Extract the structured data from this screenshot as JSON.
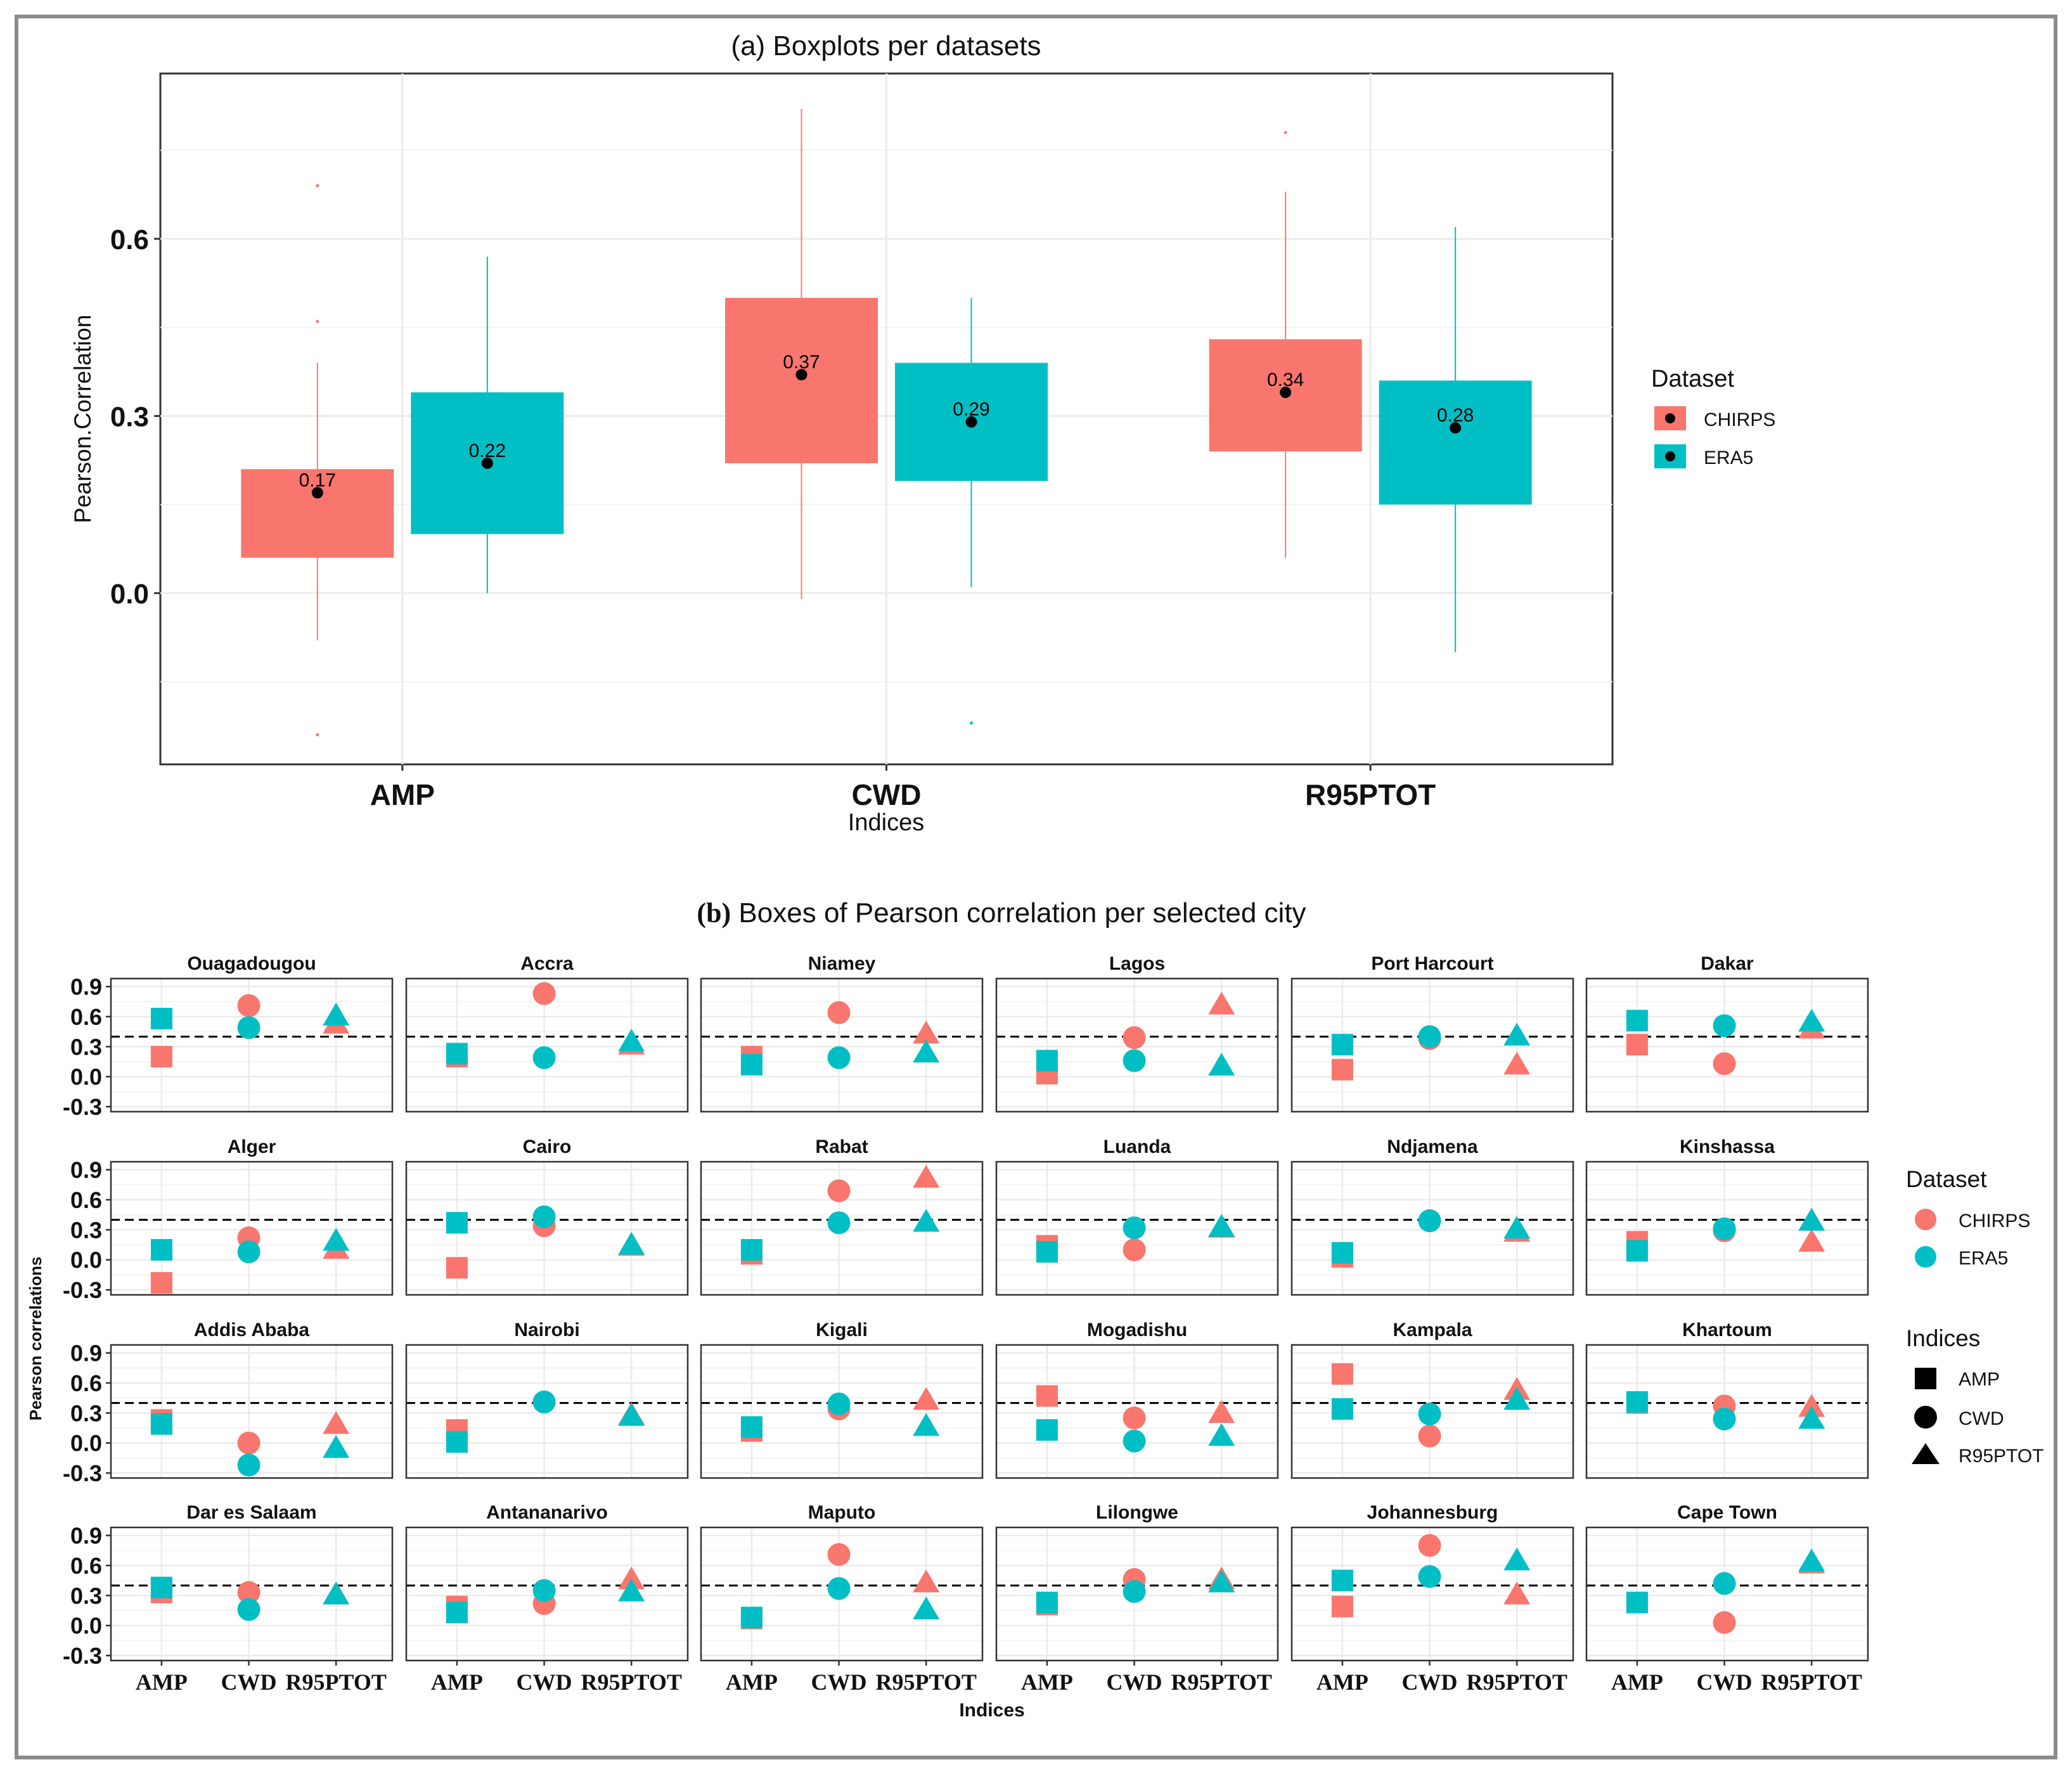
{
  "colors": {
    "chirps": "#F8766D",
    "era5": "#00BFC4",
    "panel_bg": "#FFFFFF",
    "grid": "#EBEBEB",
    "frame": "#333333"
  },
  "chart_data": [
    {
      "type": "boxplot",
      "title": "(a) Boxplots per datasets",
      "xlabel": "Indices",
      "ylabel": "Pearson.Correlation",
      "ylim": [
        -0.29,
        0.88
      ],
      "yticks": [
        "0.0",
        "0.3",
        "0.6"
      ],
      "yticks_values": [
        0.0,
        0.3,
        0.6
      ],
      "categories": [
        "AMP",
        "CWD",
        "R95PTOT"
      ],
      "legend": {
        "title": "Dataset",
        "entries": [
          "CHIRPS",
          "ERA5"
        ],
        "position": "right"
      },
      "series": [
        {
          "name": "CHIRPS",
          "boxes": [
            {
              "q1": 0.06,
              "q3": 0.21,
              "mean": 0.17,
              "label": "0.17",
              "whisker_low": -0.08,
              "whisker_high": 0.39,
              "outliers": [
                0.69,
                0.46,
                -0.24
              ]
            },
            {
              "q1": 0.22,
              "q3": 0.5,
              "mean": 0.37,
              "label": "0.37",
              "whisker_low": -0.01,
              "whisker_high": 0.82,
              "outliers": []
            },
            {
              "q1": 0.24,
              "q3": 0.43,
              "mean": 0.34,
              "label": "0.34",
              "whisker_low": 0.06,
              "whisker_high": 0.68,
              "outliers": [
                0.78
              ]
            }
          ]
        },
        {
          "name": "ERA5",
          "boxes": [
            {
              "q1": 0.1,
              "q3": 0.34,
              "mean": 0.22,
              "label": "0.22",
              "whisker_low": 0.0,
              "whisker_high": 0.57,
              "outliers": []
            },
            {
              "q1": 0.19,
              "q3": 0.39,
              "mean": 0.29,
              "label": "0.29",
              "whisker_low": 0.01,
              "whisker_high": 0.5,
              "outliers": [
                -0.22
              ]
            },
            {
              "q1": 0.15,
              "q3": 0.36,
              "mean": 0.28,
              "label": "0.28",
              "whisker_low": -0.1,
              "whisker_high": 0.62,
              "outliers": []
            }
          ]
        }
      ]
    },
    {
      "type": "scatter",
      "title_bold": "(b)",
      "title": " Boxes of Pearson correlation per selected city",
      "xlabel": "Indices",
      "ylabel": "Pearson correlations",
      "ylim": [
        -0.35,
        0.98
      ],
      "yticks": [
        "0.9",
        "0.6",
        "0.3",
        "0.0",
        "-0.3"
      ],
      "yticks_values": [
        0.9,
        0.6,
        0.3,
        0.0,
        -0.3
      ],
      "reference_line": 0.4,
      "categories": [
        "AMP",
        "CWD",
        "R95PTOT"
      ],
      "legend": {
        "dataset_title": "Dataset",
        "dataset_entries": [
          "CHIRPS",
          "ERA5"
        ],
        "indices_title": "Indices",
        "indices_entries": [
          "AMP",
          "CWD",
          "R95PTOT"
        ],
        "position": "right"
      },
      "cities": [
        {
          "name": "Ouagadougou",
          "CHIRPS": [
            0.2,
            0.71,
            0.52
          ],
          "ERA5": [
            0.58,
            0.49,
            0.6
          ]
        },
        {
          "name": "Accra",
          "CHIRPS": [
            0.2,
            0.83,
            0.31
          ],
          "ERA5": [
            0.23,
            0.19,
            0.34
          ]
        },
        {
          "name": "Niamey",
          "CHIRPS": [
            0.2,
            0.64,
            0.42
          ],
          "ERA5": [
            0.12,
            0.19,
            0.23
          ]
        },
        {
          "name": "Lagos",
          "CHIRPS": [
            0.03,
            0.39,
            0.71
          ],
          "ERA5": [
            0.16,
            0.16,
            0.1
          ]
        },
        {
          "name": "Port Harcourt",
          "CHIRPS": [
            0.07,
            0.38,
            0.11
          ],
          "ERA5": [
            0.32,
            0.4,
            0.4
          ]
        },
        {
          "name": "Dakar",
          "CHIRPS": [
            0.32,
            0.13,
            0.47
          ],
          "ERA5": [
            0.56,
            0.51,
            0.54
          ]
        },
        {
          "name": "Alger",
          "CHIRPS": [
            -0.23,
            0.22,
            0.1
          ],
          "ERA5": [
            0.1,
            0.08,
            0.18
          ]
        },
        {
          "name": "Cairo",
          "CHIRPS": [
            -0.08,
            0.34,
            0.13
          ],
          "ERA5": [
            0.37,
            0.43,
            0.14
          ]
        },
        {
          "name": "Rabat",
          "CHIRPS": [
            0.06,
            0.69,
            0.81
          ],
          "ERA5": [
            0.1,
            0.37,
            0.37
          ]
        },
        {
          "name": "Luanda",
          "CHIRPS": [
            0.14,
            0.1,
            0.31
          ],
          "ERA5": [
            0.08,
            0.32,
            0.32
          ]
        },
        {
          "name": "Ndjamena",
          "CHIRPS": [
            0.03,
            0.39,
            0.27
          ],
          "ERA5": [
            0.07,
            0.39,
            0.3
          ]
        },
        {
          "name": "Kinshassa",
          "CHIRPS": [
            0.18,
            0.29,
            0.17
          ],
          "ERA5": [
            0.09,
            0.31,
            0.38
          ]
        },
        {
          "name": "Addis Ababa",
          "CHIRPS": [
            0.23,
            0.0,
            0.18
          ],
          "ERA5": [
            0.19,
            -0.22,
            -0.06
          ]
        },
        {
          "name": "Nairobi",
          "CHIRPS": [
            0.13,
            0.41,
            0.27
          ],
          "ERA5": [
            0.01,
            0.41,
            0.26
          ]
        },
        {
          "name": "Kigali",
          "CHIRPS": [
            0.12,
            0.34,
            0.42
          ],
          "ERA5": [
            0.16,
            0.39,
            0.16
          ]
        },
        {
          "name": "Mogadishu",
          "CHIRPS": [
            0.47,
            0.25,
            0.29
          ],
          "ERA5": [
            0.13,
            0.02,
            0.06
          ]
        },
        {
          "name": "Kampala",
          "CHIRPS": [
            0.69,
            0.07,
            0.52
          ],
          "ERA5": [
            0.34,
            0.29,
            0.42
          ]
        },
        {
          "name": "Khartoum",
          "CHIRPS": [
            0.4,
            0.37,
            0.35
          ],
          "ERA5": [
            0.41,
            0.24,
            0.23
          ]
        },
        {
          "name": "Dar es Salaam",
          "CHIRPS": [
            0.33,
            0.33,
            0.3
          ],
          "ERA5": [
            0.38,
            0.16,
            0.3
          ]
        },
        {
          "name": "Antananarivo",
          "CHIRPS": [
            0.19,
            0.22,
            0.45
          ],
          "ERA5": [
            0.13,
            0.35,
            0.33
          ]
        },
        {
          "name": "Maputo",
          "CHIRPS": [
            0.07,
            0.71,
            0.42
          ],
          "ERA5": [
            0.08,
            0.37,
            0.15
          ]
        },
        {
          "name": "Lilongwe",
          "CHIRPS": [
            0.21,
            0.46,
            0.45
          ],
          "ERA5": [
            0.23,
            0.34,
            0.42
          ]
        },
        {
          "name": "Johannesburg",
          "CHIRPS": [
            0.19,
            0.8,
            0.3
          ],
          "ERA5": [
            0.45,
            0.49,
            0.64
          ]
        },
        {
          "name": "Cape Town",
          "CHIRPS": [
            0.23,
            0.03,
            0.61
          ],
          "ERA5": [
            0.23,
            0.42,
            0.63
          ]
        }
      ]
    }
  ]
}
